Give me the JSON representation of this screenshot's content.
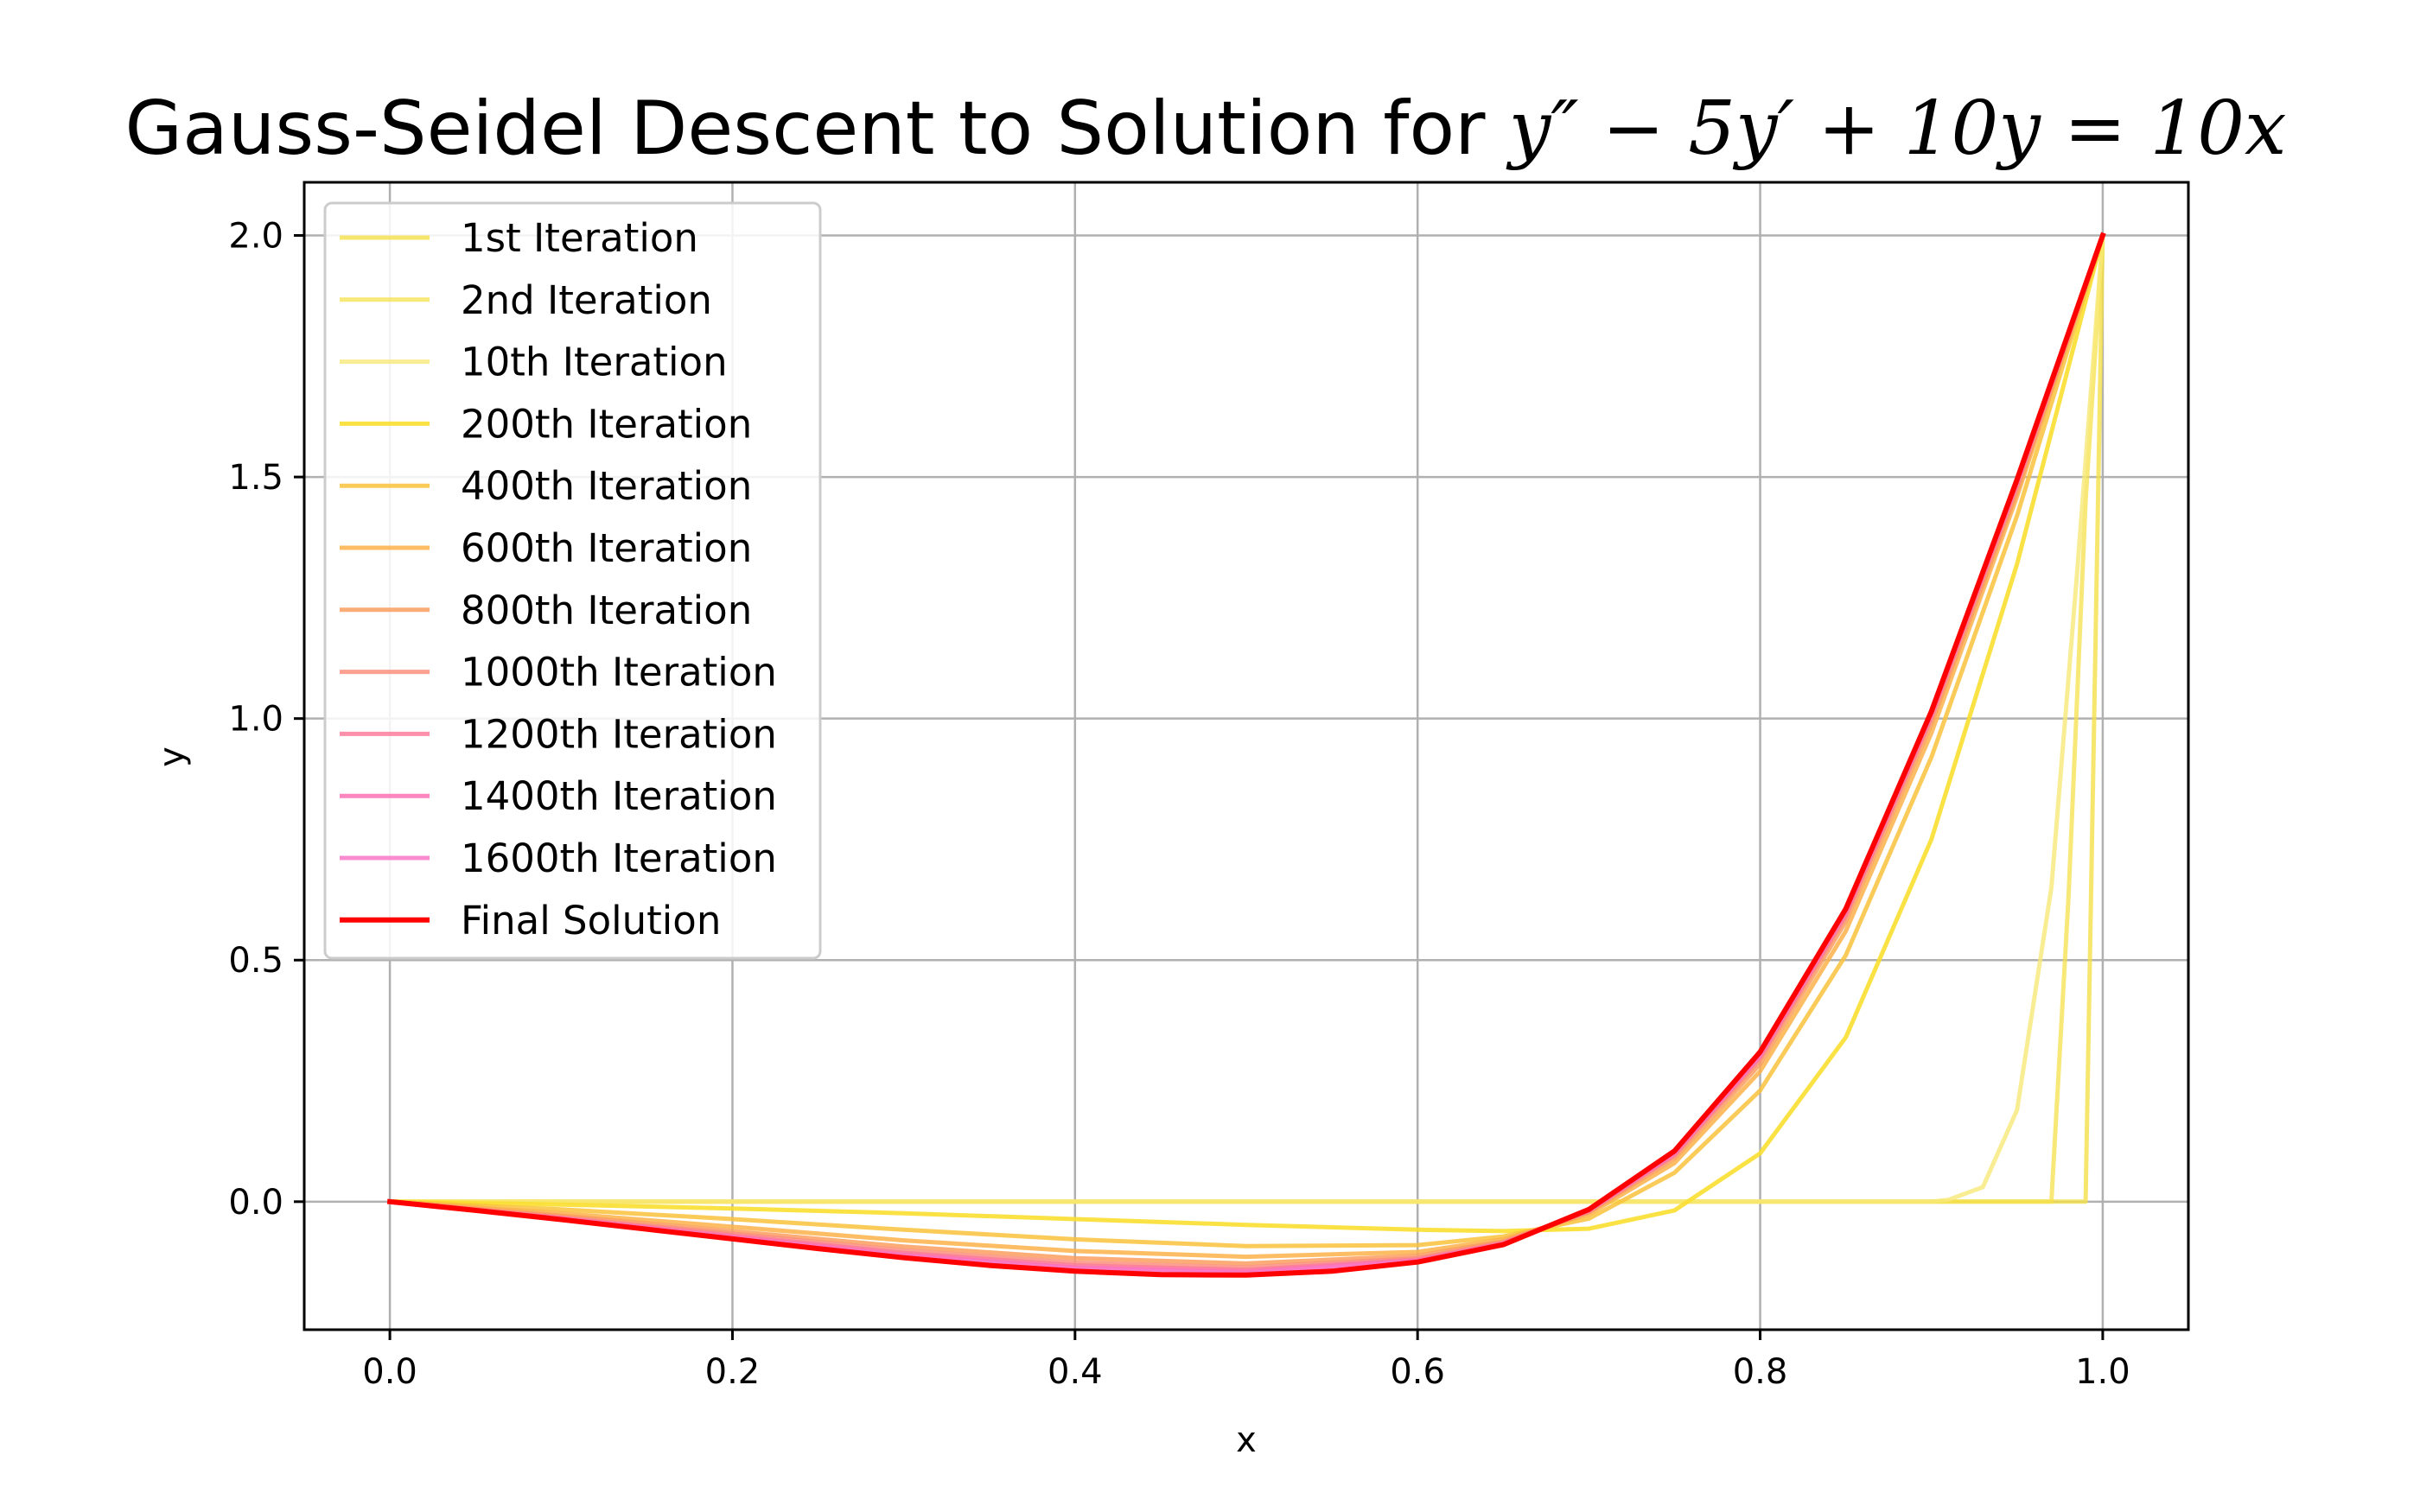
{
  "chart_data": {
    "type": "line",
    "title": {
      "prefix": "Gauss-Seidel Descent to Solution for ",
      "math": "y″ − 5y′ + 10y = 10x"
    },
    "xlabel": "x",
    "ylabel": "y",
    "xlim": [
      -0.05,
      1.05
    ],
    "ylim": [
      -0.265,
      2.11
    ],
    "xticks": [
      0.0,
      0.2,
      0.4,
      0.6,
      0.8,
      1.0
    ],
    "xtick_labels": [
      "0.0",
      "0.2",
      "0.4",
      "0.6",
      "0.8",
      "1.0"
    ],
    "yticks": [
      0.0,
      0.5,
      1.0,
      1.5,
      2.0
    ],
    "ytick_labels": [
      "0.0",
      "0.5",
      "1.0",
      "1.5",
      "2.0"
    ],
    "grid": true,
    "legend_position": "upper-left",
    "series": [
      {
        "name": "1st Iteration",
        "color": "#f5e04a",
        "opacity": 0.8,
        "width": 5,
        "points": [
          [
            0,
            0
          ],
          [
            0.99,
            0
          ],
          [
            1.0,
            2.0
          ]
        ]
      },
      {
        "name": "2nd Iteration",
        "color": "#f5e04a",
        "opacity": 0.75,
        "width": 5,
        "points": [
          [
            0,
            0
          ],
          [
            0.97,
            0
          ],
          [
            0.98,
            0.63
          ],
          [
            0.99,
            1.45
          ],
          [
            1.0,
            2.0
          ]
        ]
      },
      {
        "name": "10th Iteration",
        "color": "#f7e978",
        "opacity": 0.8,
        "width": 5,
        "points": [
          [
            0,
            0
          ],
          [
            0.9,
            0
          ],
          [
            0.91,
            0.004
          ],
          [
            0.93,
            0.03
          ],
          [
            0.95,
            0.19
          ],
          [
            0.97,
            0.65
          ],
          [
            0.985,
            1.3
          ],
          [
            1.0,
            2.0
          ]
        ]
      },
      {
        "name": "200th Iteration",
        "color": "#f9df30",
        "opacity": 0.9,
        "width": 5,
        "points": [
          [
            0,
            0
          ],
          [
            0.1,
            -0.006
          ],
          [
            0.2,
            -0.014
          ],
          [
            0.3,
            -0.024
          ],
          [
            0.4,
            -0.036
          ],
          [
            0.5,
            -0.048
          ],
          [
            0.6,
            -0.058
          ],
          [
            0.65,
            -0.061
          ],
          [
            0.7,
            -0.056
          ],
          [
            0.75,
            -0.018
          ],
          [
            0.8,
            0.1
          ],
          [
            0.85,
            0.34
          ],
          [
            0.9,
            0.75
          ],
          [
            0.95,
            1.32
          ],
          [
            1.0,
            2.0
          ]
        ]
      },
      {
        "name": "400th Iteration",
        "color": "#f9c23c",
        "opacity": 0.85,
        "width": 5,
        "points": [
          [
            0,
            0
          ],
          [
            0.1,
            -0.016
          ],
          [
            0.2,
            -0.036
          ],
          [
            0.3,
            -0.058
          ],
          [
            0.4,
            -0.078
          ],
          [
            0.5,
            -0.092
          ],
          [
            0.6,
            -0.09
          ],
          [
            0.65,
            -0.072
          ],
          [
            0.7,
            -0.035
          ],
          [
            0.75,
            0.06
          ],
          [
            0.8,
            0.23
          ],
          [
            0.85,
            0.51
          ],
          [
            0.9,
            0.92
          ],
          [
            0.95,
            1.42
          ],
          [
            1.0,
            2.0
          ]
        ]
      },
      {
        "name": "600th Iteration",
        "color": "#fbb14a",
        "opacity": 0.85,
        "width": 5,
        "points": [
          [
            0,
            0
          ],
          [
            0.1,
            -0.024
          ],
          [
            0.2,
            -0.052
          ],
          [
            0.3,
            -0.08
          ],
          [
            0.4,
            -0.102
          ],
          [
            0.5,
            -0.114
          ],
          [
            0.6,
            -0.104
          ],
          [
            0.65,
            -0.078
          ],
          [
            0.7,
            -0.026
          ],
          [
            0.75,
            0.08
          ],
          [
            0.8,
            0.27
          ],
          [
            0.85,
            0.56
          ],
          [
            0.9,
            0.97
          ],
          [
            0.95,
            1.46
          ],
          [
            1.0,
            2.0
          ]
        ]
      },
      {
        "name": "800th Iteration",
        "color": "#fb9e5e",
        "opacity": 0.85,
        "width": 5,
        "points": [
          [
            0,
            0
          ],
          [
            0.1,
            -0.029
          ],
          [
            0.2,
            -0.061
          ],
          [
            0.3,
            -0.093
          ],
          [
            0.4,
            -0.117
          ],
          [
            0.5,
            -0.128
          ],
          [
            0.6,
            -0.112
          ],
          [
            0.65,
            -0.082
          ],
          [
            0.7,
            -0.022
          ],
          [
            0.75,
            0.09
          ],
          [
            0.8,
            0.285
          ],
          [
            0.85,
            0.58
          ],
          [
            0.9,
            0.99
          ],
          [
            0.95,
            1.47
          ],
          [
            1.0,
            2.0
          ]
        ]
      },
      {
        "name": "1000th Iteration",
        "color": "#fb8f7f",
        "opacity": 0.85,
        "width": 5,
        "points": [
          [
            0,
            0
          ],
          [
            0.1,
            -0.032
          ],
          [
            0.2,
            -0.066
          ],
          [
            0.3,
            -0.101
          ],
          [
            0.4,
            -0.126
          ],
          [
            0.5,
            -0.136
          ],
          [
            0.6,
            -0.117
          ],
          [
            0.65,
            -0.084
          ],
          [
            0.7,
            -0.02
          ],
          [
            0.75,
            0.095
          ],
          [
            0.8,
            0.295
          ],
          [
            0.85,
            0.59
          ],
          [
            0.9,
            1.0
          ],
          [
            0.95,
            1.48
          ],
          [
            1.0,
            2.0
          ]
        ]
      },
      {
        "name": "1200th Iteration",
        "color": "#fb7b9a",
        "opacity": 0.85,
        "width": 5,
        "points": [
          [
            0,
            0
          ],
          [
            0.1,
            -0.034
          ],
          [
            0.2,
            -0.07
          ],
          [
            0.3,
            -0.106
          ],
          [
            0.4,
            -0.132
          ],
          [
            0.5,
            -0.141
          ],
          [
            0.6,
            -0.12
          ],
          [
            0.65,
            -0.086
          ],
          [
            0.7,
            -0.019
          ],
          [
            0.75,
            0.098
          ],
          [
            0.8,
            0.3
          ],
          [
            0.85,
            0.595
          ],
          [
            0.9,
            1.005
          ],
          [
            0.95,
            1.485
          ],
          [
            1.0,
            2.0
          ]
        ]
      },
      {
        "name": "1400th Iteration",
        "color": "#fb72b4",
        "opacity": 0.85,
        "width": 5,
        "points": [
          [
            0,
            0
          ],
          [
            0.1,
            -0.035
          ],
          [
            0.2,
            -0.073
          ],
          [
            0.3,
            -0.11
          ],
          [
            0.4,
            -0.136
          ],
          [
            0.5,
            -0.145
          ],
          [
            0.6,
            -0.122
          ],
          [
            0.65,
            -0.087
          ],
          [
            0.7,
            -0.018
          ],
          [
            0.75,
            0.1
          ],
          [
            0.8,
            0.303
          ],
          [
            0.85,
            0.6
          ],
          [
            0.9,
            1.01
          ],
          [
            0.95,
            1.49
          ],
          [
            1.0,
            2.0
          ]
        ]
      },
      {
        "name": "1600th Iteration",
        "color": "#f878c8",
        "opacity": 0.85,
        "width": 5,
        "points": [
          [
            0,
            0
          ],
          [
            0.1,
            -0.036
          ],
          [
            0.2,
            -0.075
          ],
          [
            0.3,
            -0.113
          ],
          [
            0.4,
            -0.139
          ],
          [
            0.5,
            -0.148
          ],
          [
            0.6,
            -0.124
          ],
          [
            0.65,
            -0.088
          ],
          [
            0.7,
            -0.017
          ],
          [
            0.75,
            0.102
          ],
          [
            0.8,
            0.306
          ],
          [
            0.85,
            0.603
          ],
          [
            0.9,
            1.012
          ],
          [
            0.95,
            1.492
          ],
          [
            1.0,
            2.0
          ]
        ]
      },
      {
        "name": "Final Solution",
        "color": "#ff0000",
        "opacity": 1,
        "width": 6,
        "points": [
          [
            0,
            0
          ],
          [
            0.05,
            -0.018
          ],
          [
            0.1,
            -0.037
          ],
          [
            0.15,
            -0.057
          ],
          [
            0.2,
            -0.077
          ],
          [
            0.25,
            -0.097
          ],
          [
            0.3,
            -0.116
          ],
          [
            0.35,
            -0.132
          ],
          [
            0.4,
            -0.144
          ],
          [
            0.45,
            -0.151
          ],
          [
            0.5,
            -0.152
          ],
          [
            0.55,
            -0.144
          ],
          [
            0.6,
            -0.125
          ],
          [
            0.65,
            -0.089
          ],
          [
            0.7,
            -0.016
          ],
          [
            0.75,
            0.105
          ],
          [
            0.8,
            0.31
          ],
          [
            0.85,
            0.606
          ],
          [
            0.9,
            1.015
          ],
          [
            0.95,
            1.495
          ],
          [
            1.0,
            2.0
          ]
        ]
      }
    ]
  }
}
